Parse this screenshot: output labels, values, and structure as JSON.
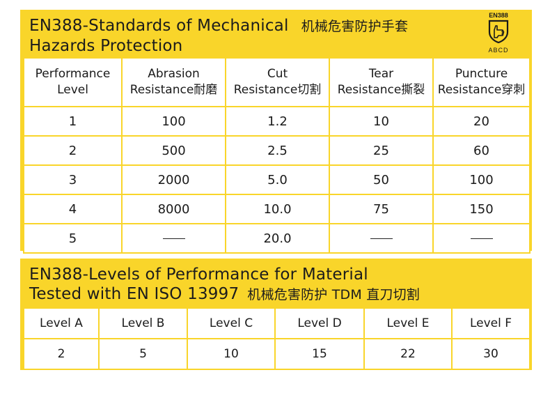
{
  "section1": {
    "title_line1": "EN388-Standards of Mechanical",
    "title_cn": "机械危害防护手套",
    "title_line2": "Hazards Protection",
    "badge_top": "EN388",
    "badge_bottom": "ABCD",
    "headers": [
      {
        "line1": "Performance",
        "line2": "Level"
      },
      {
        "line1": "Abrasion",
        "line2": "Resistance耐磨"
      },
      {
        "line1": "Cut",
        "line2": "Resistance切割"
      },
      {
        "line1": "Tear",
        "line2": "Resistance撕裂"
      },
      {
        "line1": "Puncture",
        "line2": "Resistance穿刺"
      }
    ],
    "rows": [
      [
        "1",
        "100",
        "1.2",
        "10",
        "20"
      ],
      [
        "2",
        "500",
        "2.5",
        "25",
        "60"
      ],
      [
        "3",
        "2000",
        "5.0",
        "50",
        "100"
      ],
      [
        "4",
        "8000",
        "10.0",
        "75",
        "150"
      ],
      [
        "5",
        "",
        "20.0",
        "",
        ""
      ]
    ]
  },
  "section2": {
    "title_line1": "EN388-Levels of Performance for Material",
    "title_line2": "Tested with EN ISO 13997",
    "title_cn": "机械危害防护 TDM 直刀切割",
    "headers": [
      "Level A",
      "Level B",
      "Level C",
      "Level D",
      "Level E",
      "Level F"
    ],
    "values": [
      "2",
      "5",
      "10",
      "15",
      "22",
      "30"
    ]
  },
  "colors": {
    "accent": "#f9d52a",
    "text": "#1a1a1a",
    "background": "#ffffff"
  },
  "icons": {
    "badge": "glove-hand-shield-icon"
  }
}
